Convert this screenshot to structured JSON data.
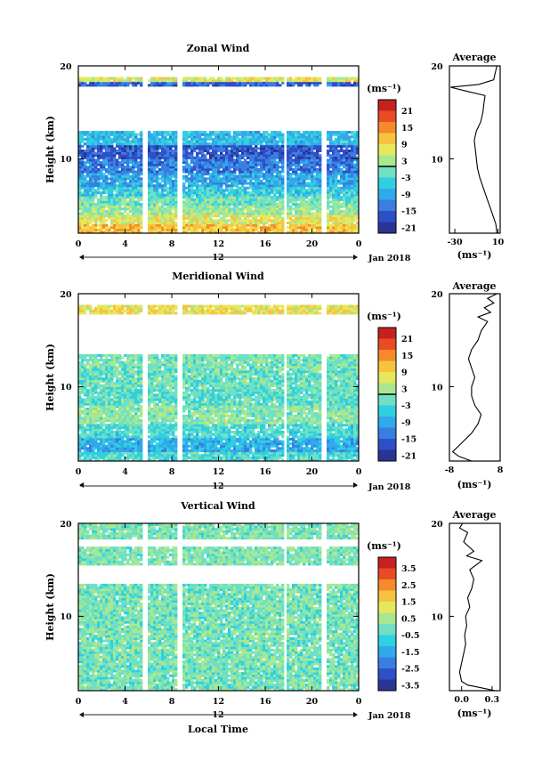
{
  "figure": {
    "xlabel": "Local Time",
    "ylabel": "Height (km)",
    "date_label": "Jan 2018",
    "date_day": "12",
    "unit": "(ms⁻¹)",
    "time_ticks": [
      "0",
      "4",
      "8",
      "12",
      "16",
      "20",
      "0"
    ],
    "height_ticks": [
      "20",
      "10"
    ]
  },
  "chart_data": [
    {
      "type": "heatmap",
      "title": "Zonal Wind",
      "xlabel": "",
      "ylabel": "Height (km)",
      "x_range_hours": [
        0,
        24
      ],
      "y_range_km": [
        2,
        20
      ],
      "colorbar": {
        "ticks": [
          "21",
          "15",
          "9",
          "3",
          "-3",
          "-9",
          "-15",
          "-21"
        ],
        "range": [
          -24,
          24
        ],
        "zero_line": 0
      },
      "layers": [
        {
          "y": [
            2,
            3
          ],
          "v": 10
        },
        {
          "y": [
            3,
            4
          ],
          "v": 6
        },
        {
          "y": [
            4,
            5
          ],
          "v": 1
        },
        {
          "y": [
            5,
            6
          ],
          "v": -2
        },
        {
          "y": [
            6,
            7
          ],
          "v": -6
        },
        {
          "y": [
            7,
            8.5
          ],
          "v": -10
        },
        {
          "y": [
            8.5,
            10
          ],
          "v": -14
        },
        {
          "y": [
            10,
            11.5
          ],
          "v": -17
        },
        {
          "y": [
            11.5,
            13
          ],
          "v": -8
        },
        {
          "y": [
            17.8,
            18.3
          ],
          "v": -16
        },
        {
          "y": [
            18.3,
            18.8
          ],
          "v": 6
        }
      ],
      "data_gaps_hours": [
        [
          5.6,
          6.0
        ],
        [
          8.4,
          8.8
        ],
        [
          17.6,
          17.9
        ],
        [
          20.9,
          21.2
        ]
      ],
      "average_profile": {
        "title": "Average",
        "xlabel": "(ms⁻¹)",
        "x_ticks": [
          "-30",
          "10"
        ],
        "x_range": [
          -35,
          12
        ],
        "heights_km": [
          2,
          3,
          4,
          5,
          6,
          7,
          8,
          9,
          10,
          11,
          12,
          13,
          14,
          15,
          16,
          16.8,
          17.3,
          17.7,
          18.0,
          18.5,
          19,
          19.5,
          20
        ],
        "values": [
          9,
          8,
          5,
          2,
          -1,
          -4,
          -7,
          -9,
          -10,
          -11,
          -12,
          -10,
          -6,
          -4,
          -3,
          -2,
          -20,
          -34,
          -8,
          6,
          7,
          8,
          9
        ]
      }
    },
    {
      "type": "heatmap",
      "title": "Meridional Wind",
      "xlabel": "",
      "ylabel": "Height (km)",
      "x_range_hours": [
        0,
        24
      ],
      "y_range_km": [
        2,
        20
      ],
      "colorbar": {
        "ticks": [
          "21",
          "15",
          "9",
          "3",
          "-3",
          "-9",
          "-15",
          "-21"
        ],
        "range": [
          -24,
          24
        ],
        "zero_line": 0
      },
      "layers": [
        {
          "y": [
            2,
            3
          ],
          "v": -4
        },
        {
          "y": [
            3,
            4.5
          ],
          "v": -9
        },
        {
          "y": [
            4.5,
            6
          ],
          "v": -4
        },
        {
          "y": [
            6,
            8
          ],
          "v": 0
        },
        {
          "y": [
            8,
            10
          ],
          "v": -3
        },
        {
          "y": [
            10,
            12
          ],
          "v": -2
        },
        {
          "y": [
            12,
            13.5
          ],
          "v": -1
        },
        {
          "y": [
            17.8,
            18.8
          ],
          "v": 7
        }
      ],
      "data_gaps_hours": [
        [
          5.6,
          6.0
        ],
        [
          8.4,
          8.8
        ],
        [
          17.6,
          17.9
        ],
        [
          20.9,
          21.2
        ]
      ],
      "average_profile": {
        "title": "Average",
        "xlabel": "(ms⁻¹)",
        "x_ticks": [
          "-8",
          "8"
        ],
        "x_range": [
          -8,
          8
        ],
        "heights_km": [
          2,
          2.5,
          3,
          4,
          5,
          6,
          7,
          8,
          9,
          10,
          11,
          12,
          13,
          14,
          15,
          16,
          17,
          17.5,
          18,
          18.5,
          19,
          19.5,
          20
        ],
        "values": [
          -1,
          -5,
          -7,
          -4,
          -1,
          1,
          2,
          0,
          -1,
          -1,
          0,
          -1,
          -2,
          -1,
          1,
          2,
          4,
          1,
          5,
          3,
          6,
          4,
          7
        ]
      }
    },
    {
      "type": "heatmap",
      "title": "Vertical Wind",
      "xlabel": "Local Time",
      "ylabel": "Height (km)",
      "x_range_hours": [
        0,
        24
      ],
      "y_range_km": [
        2,
        20
      ],
      "colorbar": {
        "ticks": [
          "3.5",
          "2.5",
          "1.5",
          "0.5",
          "-0.5",
          "-1.5",
          "-2.5",
          "-3.5"
        ],
        "range": [
          -4,
          4
        ]
      },
      "layers": [
        {
          "y": [
            2,
            13.5
          ],
          "v": -0.2
        },
        {
          "y": [
            15.5,
            17.5
          ],
          "v": -0.1
        },
        {
          "y": [
            18.3,
            20
          ],
          "v": -0.1
        }
      ],
      "data_gaps_hours": [
        [
          5.6,
          6.0
        ],
        [
          8.4,
          8.8
        ],
        [
          17.6,
          17.9
        ],
        [
          20.9,
          21.2
        ]
      ],
      "average_profile": {
        "title": "Average",
        "xlabel": "(ms⁻¹)",
        "x_ticks": [
          "0.0",
          "0.3"
        ],
        "x_range": [
          -0.12,
          0.38
        ],
        "heights_km": [
          2,
          2.3,
          2.6,
          3,
          4,
          5,
          6,
          7,
          8,
          9,
          10,
          11,
          12,
          13,
          14,
          15,
          16,
          16.5,
          17,
          18,
          19,
          19.5,
          20
        ],
        "values": [
          0.33,
          0.2,
          0.06,
          0.0,
          -0.02,
          0.0,
          0.02,
          0.04,
          0.03,
          0.05,
          0.04,
          0.08,
          0.06,
          0.1,
          0.12,
          0.08,
          0.2,
          0.05,
          0.12,
          0.02,
          0.06,
          -0.02,
          0.01
        ]
      }
    }
  ]
}
